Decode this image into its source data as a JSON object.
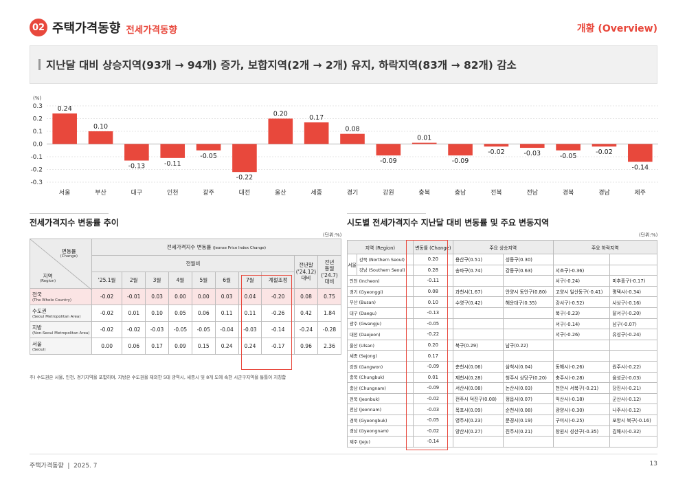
{
  "header": {
    "num": "02",
    "title": "주택가격동향",
    "subtitle": "전세가격동향",
    "overview": "개황 (Overview)"
  },
  "banner": "지난달 대비 상승지역(93개 → 94개) 증가, 보합지역(2개 → 2개) 유지, 하락지역(83개 → 82개) 감소",
  "chart_data": {
    "type": "bar",
    "ylabel": "(%)",
    "ylim": [
      -0.3,
      0.3
    ],
    "yticks": [
      "0.3",
      "0.2",
      "0.1",
      "0.0",
      "-0.1",
      "-0.2",
      "-0.3"
    ],
    "categories": [
      "서울",
      "부산",
      "대구",
      "인천",
      "광주",
      "대전",
      "울산",
      "세종",
      "경기",
      "강원",
      "충북",
      "충남",
      "전북",
      "전남",
      "경북",
      "경남",
      "제주"
    ],
    "values": [
      0.24,
      0.1,
      -0.13,
      -0.11,
      -0.05,
      -0.22,
      0.2,
      0.17,
      0.08,
      -0.09,
      0.01,
      -0.09,
      -0.02,
      -0.03,
      -0.05,
      -0.02,
      -0.14
    ],
    "labels": [
      "0.24",
      "0.10",
      "-0.13",
      "-0.11",
      "-0.05",
      "-0.22",
      "0.20",
      "0.17",
      "0.08",
      "-0.09",
      "0.01",
      "-0.09",
      "-0.02",
      "-0.03",
      "-0.05",
      "-0.02",
      "-0.14"
    ],
    "color": "#e8483c"
  },
  "left": {
    "title": "전세가격지수 변동률 추이",
    "unit": "(단위:%)",
    "h_change": "변동률",
    "h_change_en": "(Change)",
    "h_region": "지역",
    "h_region_en": "(Region)",
    "h_main": "전세가격지수 변동률",
    "h_main_en": "(Jeonse Price Index Change)",
    "h_mom": "전월비",
    "h_prev": "전년말",
    "h_prev2": "('24.12)",
    "h_prev3": "대비",
    "h_yoy": "전년",
    "h_yoy2": "동월",
    "h_yoy3": "('24.7)",
    "h_yoy4": "대비",
    "months": [
      "'25.1월",
      "2월",
      "3월",
      "4월",
      "5월",
      "6월",
      "7월",
      "계절조정"
    ],
    "rows": [
      {
        "ko": "전국",
        "en": "(The Whole Country)",
        "v": [
          "-0.02",
          "-0.01",
          "0.03",
          "0.00",
          "0.00",
          "0.03",
          "0.04",
          "-0.20",
          "0.08",
          "0.75"
        ]
      },
      {
        "ko": "수도권",
        "en": "(Seoul Metropolitan Area)",
        "v": [
          "-0.02",
          "0.01",
          "0.10",
          "0.05",
          "0.06",
          "0.11",
          "0.11",
          "-0.26",
          "0.42",
          "1.84"
        ]
      },
      {
        "ko": "지방",
        "en": "(Non-Seoul Metropolitan Area)",
        "v": [
          "-0.02",
          "-0.02",
          "-0.03",
          "-0.05",
          "-0.05",
          "-0.04",
          "-0.03",
          "-0.14",
          "-0.24",
          "-0.28"
        ]
      },
      {
        "ko": "서울",
        "en": "(Seoul)",
        "v": [
          "0.00",
          "0.06",
          "0.17",
          "0.09",
          "0.15",
          "0.24",
          "0.24",
          "-0.17",
          "0.96",
          "2.36"
        ]
      }
    ],
    "note": "주) 수도권은 서울, 인천, 경기지역을 포함하며, 지방은 수도권을 제외한 5대 광역시, 세종시 및 8개 도에 속한 시군구지역을 통틀어 지칭함"
  },
  "right": {
    "title": "시도별 전세가격지수 지난달 대비 변동률 및 주요 변동지역",
    "unit": "(단위:%)",
    "h_region": "지역 (Region)",
    "h_change": "변동률 (Change)",
    "h_up": "주요 상승지역",
    "h_down": "주요 하락지역",
    "seoul": "서울",
    "rows": [
      {
        "r": "강북 (Northern Seoul)",
        "c": "0.20",
        "u1": "용산구(0.51)",
        "u2": "성동구(0.30)",
        "d1": "",
        "d2": ""
      },
      {
        "r": "강남 (Southern Seoul)",
        "c": "0.28",
        "u1": "송파구(0.74)",
        "u2": "강동구(0.63)",
        "d1": "서초구(-0.36)",
        "d2": ""
      },
      {
        "r": "인천 (Incheon)",
        "c": "-0.11",
        "u1": "",
        "u2": "",
        "d1": "서구(-0.24)",
        "d2": "미추홀구(-0.17)"
      },
      {
        "r": "경기 (Gyeonggi)",
        "c": "0.08",
        "u1": "과천시(1.67)",
        "u2": "안양시 동안구(0.80)",
        "d1": "고양시 일산동구(-0.41)",
        "d2": "평택시(-0.34)"
      },
      {
        "r": "부산 (Busan)",
        "c": "0.10",
        "u1": "수영구(0.42)",
        "u2": "해운대구(0.35)",
        "d1": "강서구(-0.52)",
        "d2": "사상구(-0.16)"
      },
      {
        "r": "대구 (Daegu)",
        "c": "-0.13",
        "u1": "",
        "u2": "",
        "d1": "북구(-0.23)",
        "d2": "달서구(-0.20)"
      },
      {
        "r": "광주 (Gwangju)",
        "c": "-0.05",
        "u1": "",
        "u2": "",
        "d1": "서구(-0.14)",
        "d2": "남구(-0.07)"
      },
      {
        "r": "대전 (Daejeon)",
        "c": "-0.22",
        "u1": "",
        "u2": "",
        "d1": "서구(-0.26)",
        "d2": "유성구(-0.24)"
      },
      {
        "r": "울산 (Ulsan)",
        "c": "0.20",
        "u1": "북구(0.29)",
        "u2": "남구(0.22)",
        "d1": "",
        "d2": ""
      },
      {
        "r": "세종 (Sejong)",
        "c": "0.17",
        "u1": "",
        "u2": "",
        "d1": "",
        "d2": ""
      },
      {
        "r": "강원 (Gangwon)",
        "c": "-0.09",
        "u1": "춘천시(0.06)",
        "u2": "삼척시(0.04)",
        "d1": "동해시(-0.26)",
        "d2": "원주시(-0.22)"
      },
      {
        "r": "충북 (Chungbuk)",
        "c": "0.01",
        "u1": "제천시(0.28)",
        "u2": "청주시 상당구(0.20)",
        "d1": "충주시(-0.28)",
        "d2": "음성군(-0.03)"
      },
      {
        "r": "충남 (Chungnam)",
        "c": "-0.09",
        "u1": "서산시(0.08)",
        "u2": "논산시(0.03)",
        "d1": "천안시 서북구(-0.21)",
        "d2": "당진시(-0.21)"
      },
      {
        "r": "전북 (Jeonbuk)",
        "c": "-0.02",
        "u1": "전주시 덕진구(0.08)",
        "u2": "정읍시(0.07)",
        "d1": "익산시(-0.18)",
        "d2": "군산시(-0.12)"
      },
      {
        "r": "전남 (Jeonnam)",
        "c": "-0.03",
        "u1": "목포시(0.09)",
        "u2": "순천시(0.08)",
        "d1": "광양시(-0.30)",
        "d2": "나주시(-0.12)"
      },
      {
        "r": "경북 (Gyeongbuk)",
        "c": "-0.05",
        "u1": "영주시(0.23)",
        "u2": "문경시(0.19)",
        "d1": "구미시(-0.25)",
        "d2": "포항시 북구(-0.16)"
      },
      {
        "r": "경남 (Gyeongnam)",
        "c": "-0.02",
        "u1": "양산시(0.27)",
        "u2": "진주시(0.21)",
        "d1": "창원시 성산구(-0.35)",
        "d2": "김해시(-0.32)"
      },
      {
        "r": "제주 (Jeju)",
        "c": "-0.14",
        "u1": "",
        "u2": "",
        "d1": "",
        "d2": ""
      }
    ]
  },
  "footer": {
    "left": "주택가격동향  |  2025. 7",
    "page": "13"
  }
}
